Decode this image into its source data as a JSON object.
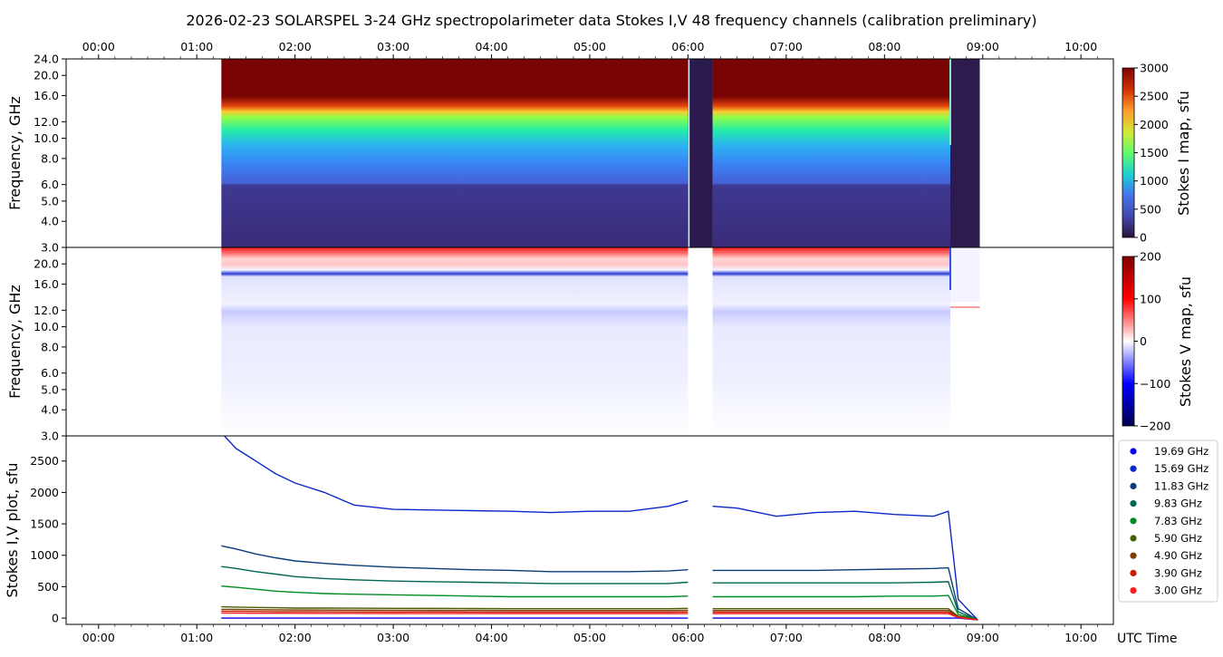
{
  "title": "2026-02-23  SOLARSPEL  3-24 GHz spectropolarimeter data   Stokes I,V   48 frequency channels   (calibration preliminary)",
  "time_ticks": [
    "00:00",
    "01:00",
    "02:00",
    "03:00",
    "04:00",
    "05:00",
    "06:00",
    "07:00",
    "08:00",
    "09:00",
    "10:00"
  ],
  "xlabel": "UTC Time",
  "chart_data": [
    {
      "type": "heatmap",
      "name": "stokes-i-map",
      "ylabel": "Frequency, GHz",
      "y_ticks": [
        "3.0",
        "4.0",
        "5.0",
        "6.0",
        "8.0",
        "10.0",
        "12.0",
        "16.0",
        "20.0",
        "24.0"
      ],
      "ylim": [
        3.0,
        24.0
      ],
      "x_range_hours": [
        -0.33,
        10.33
      ],
      "colorbar": {
        "label": "Stokes I map, sfu",
        "ticks": [
          "0",
          "500",
          "1000",
          "1500",
          "2000",
          "2500",
          "3000"
        ],
        "range": [
          0,
          3000
        ],
        "colormap": "turbo"
      }
    },
    {
      "type": "heatmap",
      "name": "stokes-v-map",
      "ylabel": "Frequency, GHz",
      "y_ticks": [
        "3.0",
        "4.0",
        "5.0",
        "6.0",
        "8.0",
        "10.0",
        "12.0",
        "16.0",
        "20.0"
      ],
      "ylim": [
        3.0,
        24.0
      ],
      "x_range_hours": [
        -0.33,
        10.33
      ],
      "colorbar": {
        "label": "Stokes V map, sfu",
        "ticks": [
          "−200",
          "−100",
          "0",
          "100",
          "200"
        ],
        "range": [
          -200,
          200
        ],
        "colormap": "seismic"
      }
    },
    {
      "type": "line",
      "name": "stokes-iv-plot",
      "ylabel": "Stokes I,V plot, sfu",
      "y_ticks": [
        "0",
        "500",
        "1000",
        "1500",
        "2000",
        "2500"
      ],
      "y_tick_values": [
        0,
        500,
        1000,
        1500,
        2000,
        2500
      ],
      "ylim": [
        -100,
        2900
      ],
      "x_range_hours": [
        -0.33,
        10.33
      ],
      "legend_position": "right",
      "x_hours": [
        1.25,
        1.4,
        1.6,
        1.8,
        2.0,
        2.3,
        2.6,
        3.0,
        3.4,
        3.8,
        4.2,
        4.6,
        5.0,
        5.4,
        5.8,
        6.0,
        6.25,
        6.5,
        6.9,
        7.3,
        7.7,
        8.1,
        8.5,
        8.65,
        8.75,
        8.95
      ],
      "series": [
        {
          "name": "19.69 GHz",
          "color": "#0000ee",
          "values": [
            0,
            0,
            0,
            0,
            0,
            0,
            0,
            0,
            0,
            0,
            0,
            0,
            0,
            0,
            0,
            0,
            0,
            0,
            0,
            0,
            0,
            0,
            0,
            0,
            0,
            -30
          ]
        },
        {
          "name": "15.69 GHz",
          "color": "#0a28c8",
          "values": [
            2950,
            2700,
            2500,
            2300,
            2150,
            2000,
            1800,
            1730,
            1720,
            1710,
            1700,
            1680,
            1700,
            1700,
            1780,
            1870,
            1780,
            1750,
            1620,
            1680,
            1700,
            1650,
            1620,
            1700,
            300,
            -30
          ]
        },
        {
          "name": "11.83 GHz",
          "color": "#0a3e7a",
          "values": [
            1150,
            1100,
            1020,
            960,
            910,
            870,
            840,
            810,
            790,
            770,
            760,
            740,
            740,
            740,
            750,
            770,
            760,
            760,
            760,
            760,
            770,
            780,
            790,
            800,
            150,
            -30
          ]
        },
        {
          "name": "9.83 GHz",
          "color": "#006450",
          "values": [
            820,
            790,
            740,
            700,
            660,
            630,
            610,
            590,
            580,
            570,
            560,
            550,
            550,
            550,
            550,
            570,
            560,
            560,
            560,
            560,
            560,
            560,
            570,
            580,
            100,
            -30
          ]
        },
        {
          "name": "7.83 GHz",
          "color": "#008c23",
          "values": [
            510,
            490,
            460,
            430,
            410,
            390,
            380,
            370,
            360,
            350,
            340,
            340,
            340,
            340,
            340,
            350,
            340,
            340,
            340,
            340,
            340,
            350,
            350,
            360,
            60,
            -30
          ]
        },
        {
          "name": "5.90 GHz",
          "color": "#465f00",
          "values": [
            180,
            175,
            170,
            165,
            160,
            160,
            158,
            155,
            155,
            152,
            150,
            150,
            150,
            150,
            150,
            155,
            150,
            150,
            150,
            150,
            150,
            150,
            150,
            150,
            30,
            -30
          ]
        },
        {
          "name": "4.90 GHz",
          "color": "#7d3c00",
          "values": [
            140,
            138,
            135,
            132,
            130,
            128,
            126,
            125,
            124,
            122,
            120,
            120,
            120,
            120,
            120,
            125,
            120,
            120,
            120,
            120,
            120,
            120,
            120,
            120,
            20,
            -30
          ]
        },
        {
          "name": "3.90 GHz",
          "color": "#c81e00",
          "values": [
            110,
            108,
            106,
            104,
            102,
            100,
            99,
            98,
            97,
            96,
            95,
            95,
            95,
            95,
            95,
            98,
            95,
            95,
            95,
            95,
            95,
            95,
            95,
            95,
            15,
            -30
          ]
        },
        {
          "name": "3.00 GHz",
          "color": "#ff1e1e",
          "values": [
            80,
            79,
            78,
            77,
            76,
            75,
            74,
            73,
            72,
            71,
            70,
            70,
            70,
            70,
            70,
            72,
            70,
            70,
            70,
            70,
            70,
            70,
            70,
            70,
            10,
            -30
          ]
        }
      ]
    }
  ]
}
